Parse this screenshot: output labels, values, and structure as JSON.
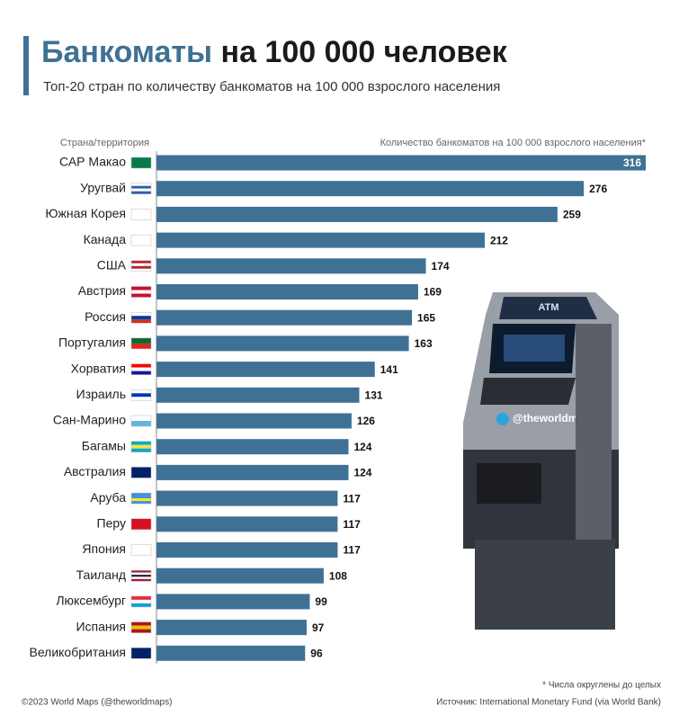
{
  "chart_data": {
    "type": "bar",
    "orientation": "horizontal",
    "title_accent": "Банкоматы",
    "title": "на 100 000 человек",
    "subtitle": "Топ-20 стран по количеству банкоматов на 100 000 взрослого населения",
    "category_header": "Страна/территория",
    "value_header": "Количество банкоматов на 100 000 взрослого населения*",
    "categories": [
      "САР Макао",
      "Уругвай",
      "Южная Корея",
      "Канада",
      "США",
      "Австрия",
      "Россия",
      "Португалия",
      "Хорватия",
      "Израиль",
      "Сан-Марино",
      "Багамы",
      "Австралия",
      "Аруба",
      "Перу",
      "Япония",
      "Таиланд",
      "Люксембург",
      "Испания",
      "Великобритания"
    ],
    "values": [
      316,
      276,
      259,
      212,
      174,
      169,
      165,
      163,
      141,
      131,
      126,
      124,
      124,
      117,
      117,
      117,
      108,
      99,
      97,
      96
    ],
    "color": "#3f7195",
    "atm_screen_text": "ATM",
    "handle": "@theworldmaps",
    "footnote": "* Числа округлены до целых",
    "credit": "©2023 World Maps (@theworldmaps)",
    "source": "Источник: International Monetary Fund (via World Bank)"
  }
}
